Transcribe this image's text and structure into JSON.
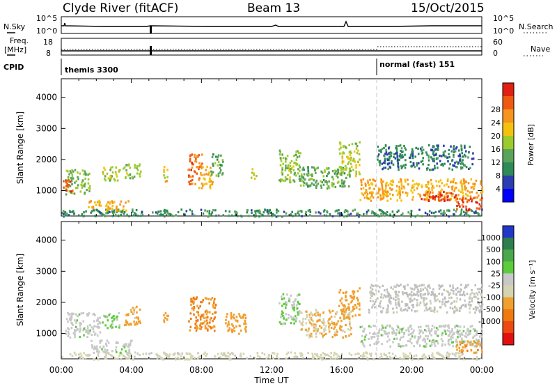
{
  "header": {
    "title": "Clyde River (fitACF)",
    "beam": "Beam 13",
    "date": "15/Oct/2015"
  },
  "top_panels": {
    "nsky_label": "N.Sky",
    "nsky_ticks": [
      "10^5",
      "10^0"
    ],
    "nsearch_label": "N.Search",
    "nsearch_ticks": [
      "10^5",
      "10^0"
    ],
    "freq_label": "Freq.",
    "freq_unit": "[MHz]",
    "freq_ticks": [
      "18",
      "8"
    ],
    "nave_label": "Nave",
    "nave_ticks": [
      "60",
      "0"
    ],
    "cpid_label": "CPID",
    "cpid_segments": [
      {
        "name": "themis 3300",
        "start": 0
      },
      {
        "name": "normal (fast) 151",
        "start": 18
      }
    ]
  },
  "axes": {
    "ylabel": "Slant Range [km]",
    "xlabel": "Time UT",
    "yticks": [
      "1000",
      "2000",
      "3000",
      "4000"
    ],
    "xticks": [
      "00:00",
      "04:00",
      "08:00",
      "12:00",
      "16:00",
      "20:00",
      "00:00"
    ]
  },
  "colors": {
    "power_scale": [
      "#0000ff",
      "#2c3db0",
      "#2e8b57",
      "#5aa35a",
      "#9ccb2e",
      "#f4c20d",
      "#f7941d",
      "#ef5a12",
      "#e02010"
    ],
    "velocity_scale": [
      "#2137c8",
      "#2d7f4e",
      "#4aa84a",
      "#5ccc3c",
      "#c8c8c8",
      "#d4d4b0",
      "#f0a030",
      "#ef7a12",
      "#ec4a10",
      "#e21010"
    ],
    "ground_scatter": "#bdbdbd"
  },
  "chart_data": [
    {
      "type": "heatmap",
      "title": "Power",
      "xlabel": "Time UT",
      "ylabel": "Slant Range [km]",
      "xlim": [
        0,
        24
      ],
      "ylim": [
        180,
        4600
      ],
      "colorbar": {
        "label": "Power [dB]",
        "ticks": [
          "4",
          "8",
          "12",
          "16",
          "20",
          "24",
          "28"
        ],
        "range": [
          0,
          30
        ]
      },
      "regions": [
        {
          "t0": 0.0,
          "t1": 24.0,
          "r0": 190,
          "r1": 420,
          "value": 9
        },
        {
          "t0": 0.2,
          "t1": 1.6,
          "r0": 900,
          "r1": 1700,
          "value": 14
        },
        {
          "t0": 0.0,
          "t1": 0.6,
          "r0": 1000,
          "r1": 1400,
          "value": 26
        },
        {
          "t0": 1.5,
          "t1": 3.8,
          "r0": 380,
          "r1": 700,
          "value": 20
        },
        {
          "t0": 2.3,
          "t1": 3.3,
          "r0": 1300,
          "r1": 1800,
          "value": 15
        },
        {
          "t0": 3.5,
          "t1": 4.5,
          "r0": 1400,
          "r1": 1900,
          "value": 14
        },
        {
          "t0": 5.8,
          "t1": 6.1,
          "r0": 1300,
          "r1": 1800,
          "value": 18
        },
        {
          "t0": 7.2,
          "t1": 8.0,
          "r0": 1200,
          "r1": 2200,
          "value": 24
        },
        {
          "t0": 7.8,
          "t1": 8.6,
          "r0": 1100,
          "r1": 1800,
          "value": 20
        },
        {
          "t0": 8.5,
          "t1": 9.2,
          "r0": 1500,
          "r1": 2200,
          "value": 12
        },
        {
          "t0": 10.8,
          "t1": 11.1,
          "r0": 1400,
          "r1": 1800,
          "value": 16
        },
        {
          "t0": 12.4,
          "t1": 13.6,
          "r0": 1300,
          "r1": 2400,
          "value": 14
        },
        {
          "t0": 13.6,
          "t1": 16.5,
          "r0": 1100,
          "r1": 1800,
          "value": 12
        },
        {
          "t0": 15.8,
          "t1": 17.0,
          "r0": 1500,
          "r1": 2600,
          "value": 16
        },
        {
          "t0": 17.0,
          "t1": 24.0,
          "r0": 700,
          "r1": 1400,
          "value": 20
        },
        {
          "t0": 20.5,
          "t1": 22.7,
          "r0": 700,
          "r1": 1000,
          "value": 28
        },
        {
          "t0": 18.0,
          "t1": 23.5,
          "r0": 1700,
          "r1": 2500,
          "value": 8
        },
        {
          "t0": 22.5,
          "t1": 24.0,
          "r0": 400,
          "r1": 800,
          "value": 26
        }
      ]
    },
    {
      "type": "heatmap",
      "title": "Velocity",
      "xlabel": "Time UT",
      "ylabel": "Slant Range [km]",
      "xlim": [
        0,
        24
      ],
      "ylim": [
        180,
        4600
      ],
      "colorbar": {
        "label": "Velocity [m s⁻¹]",
        "ticks": [
          "1000",
          "500",
          "100",
          "25",
          "-25",
          "-100",
          "-500",
          "-1000"
        ],
        "range": [
          -1000,
          1000
        ]
      },
      "regions": [
        {
          "t0": 0.0,
          "t1": 24.0,
          "r0": 190,
          "r1": 420,
          "value": -50
        },
        {
          "t0": 0.2,
          "t1": 2.2,
          "r0": 900,
          "r1": 1700,
          "value": 150
        },
        {
          "t0": 1.5,
          "t1": 4.0,
          "r0": 400,
          "r1": 800,
          "value": 150
        },
        {
          "t0": 2.3,
          "t1": 3.3,
          "r0": 1200,
          "r1": 1700,
          "value": 200
        },
        {
          "t0": 3.5,
          "t1": 4.5,
          "r0": 1300,
          "r1": 1900,
          "value": -250
        },
        {
          "t0": 5.8,
          "t1": 6.1,
          "r0": 1300,
          "r1": 1800,
          "value": -300
        },
        {
          "t0": 7.2,
          "t1": 8.8,
          "r0": 1100,
          "r1": 2200,
          "value": -400
        },
        {
          "t0": 9.3,
          "t1": 10.5,
          "r0": 1000,
          "r1": 1700,
          "value": -300
        },
        {
          "t0": 12.4,
          "t1": 13.6,
          "r0": 1300,
          "r1": 2300,
          "value": 200
        },
        {
          "t0": 13.6,
          "t1": 16.5,
          "r0": 900,
          "r1": 1800,
          "value": -200
        },
        {
          "t0": 15.8,
          "t1": 17.0,
          "r0": 1500,
          "r1": 2500,
          "value": -300
        },
        {
          "t0": 17.5,
          "t1": 24.0,
          "r0": 1700,
          "r1": 2600,
          "value": 0
        },
        {
          "t0": 17.0,
          "t1": 24.0,
          "r0": 600,
          "r1": 1300,
          "value": 150
        },
        {
          "t0": 22.5,
          "t1": 24.0,
          "r0": 400,
          "r1": 800,
          "value": -350
        }
      ]
    }
  ]
}
